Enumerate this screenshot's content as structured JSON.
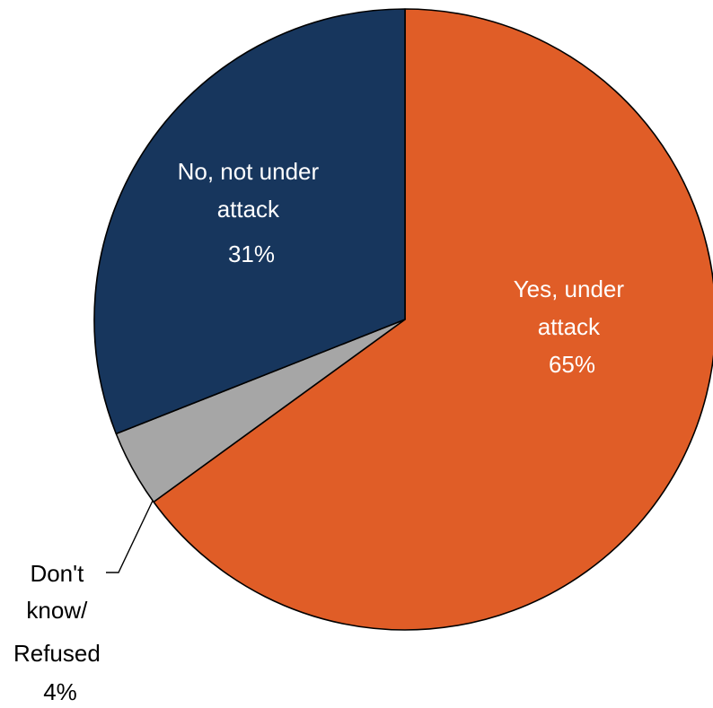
{
  "chart_data": {
    "type": "pie",
    "slices": [
      {
        "name": "Yes, under attack",
        "value": 65,
        "label_lines": [
          "Yes, under",
          "attack",
          "65%"
        ],
        "color": "#E05D27"
      },
      {
        "name": "Don't know/ Refused",
        "value": 4,
        "label_lines": [
          "Don't",
          "know/",
          "Refused",
          "4%"
        ],
        "color": "#A6A6A6"
      },
      {
        "name": "No, not under attack",
        "value": 31,
        "label_lines": [
          "No, not under",
          "attack",
          "31%"
        ],
        "color": "#17365D"
      }
    ],
    "start_angle": "12 o'clock",
    "direction": "clockwise",
    "legend": "none",
    "title": ""
  }
}
